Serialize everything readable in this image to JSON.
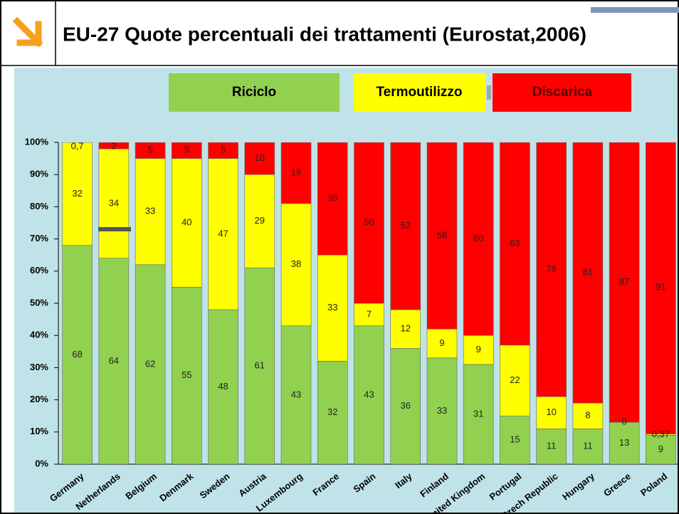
{
  "chart_data": {
    "type": "stacked_bar",
    "title": "EU-27 Quote percentuali dei trattamenti (Eurostat,2006)",
    "categories": [
      "Germany",
      "Netherlands",
      "Belgium",
      "Denmark",
      "Sweden",
      "Austria",
      "Luxembourg",
      "France",
      "Spain",
      "Italy",
      "Finland",
      "United Kingdom",
      "Portugal",
      "Czech Republic",
      "Hungary",
      "Greece",
      "Poland"
    ],
    "series": [
      {
        "name": "Riciclo",
        "color": "#92d050",
        "values": [
          68,
          64,
          62,
          55,
          48,
          61,
          43,
          32,
          43,
          36,
          33,
          31,
          15,
          11,
          11,
          13,
          9
        ]
      },
      {
        "name": "Termoutilizzo",
        "color": "#ffff00",
        "values": [
          32,
          34,
          33,
          40,
          47,
          29,
          38,
          33,
          7,
          12,
          9,
          9,
          22,
          10,
          8,
          0,
          0.37
        ],
        "value_labels": [
          "32",
          "34",
          "33",
          "40",
          "47",
          "29",
          "38",
          "33",
          "7",
          "12",
          "9",
          "9",
          "22",
          "10",
          "8",
          "0",
          "0,37"
        ]
      },
      {
        "name": "Discarica",
        "color": "#ff0000",
        "values": [
          0.7,
          2,
          5,
          5,
          5,
          10,
          19,
          35,
          50,
          52,
          58,
          60,
          63,
          79,
          81,
          87,
          91
        ],
        "value_labels": [
          "0,7",
          "2",
          "5",
          "5",
          "5",
          "10",
          "19",
          "35",
          "50",
          "52",
          "58",
          "60",
          "63",
          "79",
          "81",
          "87",
          "91"
        ]
      }
    ],
    "ylim": [
      0,
      100
    ],
    "yticks": [
      {
        "value": 0,
        "label": "0%"
      },
      {
        "value": 10,
        "label": "10%"
      },
      {
        "value": 20,
        "label": "20%"
      },
      {
        "value": 30,
        "label": "30%"
      },
      {
        "value": 40,
        "label": "40%"
      },
      {
        "value": 50,
        "label": "50%"
      },
      {
        "value": 60,
        "label": "60%"
      },
      {
        "value": 70,
        "label": "70%"
      },
      {
        "value": 80,
        "label": "80%"
      },
      {
        "value": 90,
        "label": "90%"
      },
      {
        "value": 100,
        "label": "100%"
      }
    ],
    "grid": false
  }
}
